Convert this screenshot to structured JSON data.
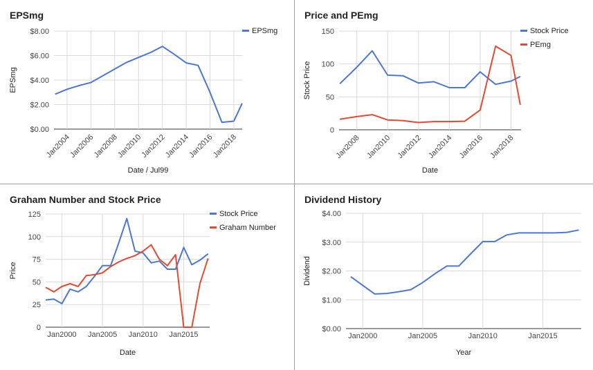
{
  "colors": {
    "blue": "#4a76d6",
    "red": "#e6472f",
    "grid": "#d9d9d9",
    "axis": "#333333"
  },
  "chart_data": [
    {
      "type": "line",
      "title": "EPSmg",
      "xlabel": "Date / Jul99",
      "ylabel": "EPSmg",
      "x_ticks": [
        {
          "x": 2004,
          "label": "Jan2004"
        },
        {
          "x": 2006,
          "label": "Jan2006"
        },
        {
          "x": 2008,
          "label": "Jan2008"
        },
        {
          "x": 2010,
          "label": "Jan2010"
        },
        {
          "x": 2012,
          "label": "Jan2012"
        },
        {
          "x": 2014,
          "label": "Jan2014"
        },
        {
          "x": 2016,
          "label": "Jan2016"
        },
        {
          "x": 2018,
          "label": "Jan2018"
        }
      ],
      "y_ticks": [
        {
          "y": 0,
          "label": "$0.00"
        },
        {
          "y": 2,
          "label": "$2.00"
        },
        {
          "y": 4,
          "label": "$4.00"
        },
        {
          "y": 6,
          "label": "$6.00"
        },
        {
          "y": 8,
          "label": "$8.00"
        }
      ],
      "xlim": [
        2002.9,
        2018.7
      ],
      "ylim": [
        0,
        8
      ],
      "legend_position": "top-right",
      "series": [
        {
          "name": "EPSmg",
          "color": "#4a76d6",
          "points": [
            [
              2003,
              2.85
            ],
            [
              2004,
              3.25
            ],
            [
              2005,
              3.55
            ],
            [
              2006,
              3.8
            ],
            [
              2007,
              4.35
            ],
            [
              2008,
              4.9
            ],
            [
              2009,
              5.45
            ],
            [
              2010,
              5.85
            ],
            [
              2011,
              6.25
            ],
            [
              2012,
              6.75
            ],
            [
              2013,
              6.1
            ],
            [
              2014,
              5.4
            ],
            [
              2015,
              5.2
            ],
            [
              2016,
              3.0
            ],
            [
              2017,
              0.55
            ],
            [
              2018,
              0.65
            ],
            [
              2018.7,
              2.1
            ]
          ]
        }
      ]
    },
    {
      "type": "line",
      "title": "Price and PEmg",
      "xlabel": "Date",
      "ylabel": "Stock Price",
      "x_ticks": [
        {
          "x": 2008,
          "label": "Jan2008"
        },
        {
          "x": 2010,
          "label": "Jan2010"
        },
        {
          "x": 2012,
          "label": "Jan2012"
        },
        {
          "x": 2014,
          "label": "Jan2014"
        },
        {
          "x": 2016,
          "label": "Jan2016"
        },
        {
          "x": 2018,
          "label": "Jan2018"
        }
      ],
      "y_ticks": [
        {
          "y": 0,
          "label": "0"
        },
        {
          "y": 50,
          "label": "50"
        },
        {
          "y": 100,
          "label": "100"
        },
        {
          "y": 150,
          "label": "150"
        }
      ],
      "xlim": [
        2006.85,
        2018.65
      ],
      "ylim": [
        0,
        150
      ],
      "legend_position": "top-right",
      "series": [
        {
          "name": "Stock Price",
          "color": "#4a76d6",
          "points": [
            [
              2006.9,
              70
            ],
            [
              2008,
              95
            ],
            [
              2009,
              120
            ],
            [
              2010,
              83
            ],
            [
              2011,
              82
            ],
            [
              2012,
              71
            ],
            [
              2013,
              73
            ],
            [
              2014,
              64
            ],
            [
              2015,
              64
            ],
            [
              2016,
              88
            ],
            [
              2017,
              69
            ],
            [
              2018,
              74
            ],
            [
              2018.6,
              81
            ]
          ]
        },
        {
          "name": "PEmg",
          "color": "#e6472f",
          "points": [
            [
              2006.9,
              16
            ],
            [
              2008,
              20
            ],
            [
              2009,
              23
            ],
            [
              2010,
              15
            ],
            [
              2011,
              14
            ],
            [
              2012,
              11
            ],
            [
              2013,
              12.5
            ],
            [
              2014,
              12.5
            ],
            [
              2015,
              13
            ],
            [
              2016,
              30
            ],
            [
              2017,
              127
            ],
            [
              2018,
              113
            ],
            [
              2018.6,
              38
            ]
          ]
        }
      ]
    },
    {
      "type": "line",
      "title": "Graham Number and Stock Price",
      "xlabel": "Date",
      "ylabel": "Price",
      "x_ticks": [
        {
          "x": 2000,
          "label": "Jan2000"
        },
        {
          "x": 2005,
          "label": "Jan2005"
        },
        {
          "x": 2010,
          "label": "Jan2010"
        },
        {
          "x": 2015,
          "label": "Jan2015"
        }
      ],
      "y_ticks": [
        {
          "y": 0,
          "label": "0"
        },
        {
          "y": 25,
          "label": "25"
        },
        {
          "y": 50,
          "label": "50"
        },
        {
          "y": 75,
          "label": "75"
        },
        {
          "y": 100,
          "label": "100"
        },
        {
          "y": 125,
          "label": "125"
        }
      ],
      "xlim": [
        1998,
        2018.2
      ],
      "ylim": [
        0,
        125
      ],
      "legend_position": "top-right",
      "series": [
        {
          "name": "Stock Price",
          "color": "#4a76d6",
          "points": [
            [
              1998,
              30
            ],
            [
              1999,
              31
            ],
            [
              2000,
              26
            ],
            [
              2001,
              42
            ],
            [
              2002,
              39
            ],
            [
              2003,
              45
            ],
            [
              2004,
              56
            ],
            [
              2005,
              68
            ],
            [
              2006,
              68
            ],
            [
              2007,
              93
            ],
            [
              2008,
              120
            ],
            [
              2009,
              84
            ],
            [
              2010,
              82
            ],
            [
              2011,
              71
            ],
            [
              2012,
              73
            ],
            [
              2013,
              64
            ],
            [
              2014,
              64
            ],
            [
              2015,
              88
            ],
            [
              2016,
              69
            ],
            [
              2017,
              74
            ],
            [
              2018,
              81
            ]
          ]
        },
        {
          "name": "Graham Number",
          "color": "#e6472f",
          "points": [
            [
              1998,
              44
            ],
            [
              1999,
              39
            ],
            [
              2000,
              45
            ],
            [
              2001,
              48
            ],
            [
              2002,
              45
            ],
            [
              2003,
              57
            ],
            [
              2004,
              58
            ],
            [
              2005,
              60
            ],
            [
              2006,
              67
            ],
            [
              2007,
              72
            ],
            [
              2008,
              76
            ],
            [
              2009,
              79
            ],
            [
              2010,
              84
            ],
            [
              2011,
              91
            ],
            [
              2012,
              75
            ],
            [
              2013,
              68
            ],
            [
              2014,
              80
            ],
            [
              2015,
              0
            ],
            [
              2016,
              0
            ],
            [
              2017,
              48
            ],
            [
              2018,
              76
            ]
          ]
        }
      ]
    },
    {
      "type": "line",
      "title": "Dividend History",
      "xlabel": "Year",
      "ylabel": "Dividend",
      "x_ticks": [
        {
          "x": 2000,
          "label": "Jan2000"
        },
        {
          "x": 2005,
          "label": "Jan2005"
        },
        {
          "x": 2010,
          "label": "Jan2010"
        },
        {
          "x": 2015,
          "label": "Jan2015"
        }
      ],
      "y_ticks": [
        {
          "y": 0,
          "label": "$0.00"
        },
        {
          "y": 1,
          "label": "$1.00"
        },
        {
          "y": 2,
          "label": "$2.00"
        },
        {
          "y": 3,
          "label": "$3.00"
        },
        {
          "y": 4,
          "label": "$4.00"
        }
      ],
      "xlim": [
        1998.6,
        2018.2
      ],
      "ylim": [
        0,
        4
      ],
      "legend_position": "none",
      "series": [
        {
          "name": "Dividend",
          "color": "#4a76d6",
          "points": [
            [
              1999,
              1.8
            ],
            [
              2000,
              1.5
            ],
            [
              2001,
              1.2
            ],
            [
              2002,
              1.22
            ],
            [
              2003,
              1.28
            ],
            [
              2004,
              1.35
            ],
            [
              2005,
              1.6
            ],
            [
              2006,
              1.9
            ],
            [
              2007,
              2.17
            ],
            [
              2008,
              2.17
            ],
            [
              2009,
              2.6
            ],
            [
              2010,
              3.02
            ],
            [
              2011,
              3.02
            ],
            [
              2012,
              3.25
            ],
            [
              2013,
              3.32
            ],
            [
              2014,
              3.32
            ],
            [
              2015,
              3.32
            ],
            [
              2016,
              3.32
            ],
            [
              2017,
              3.34
            ],
            [
              2018,
              3.42
            ]
          ]
        }
      ]
    }
  ]
}
